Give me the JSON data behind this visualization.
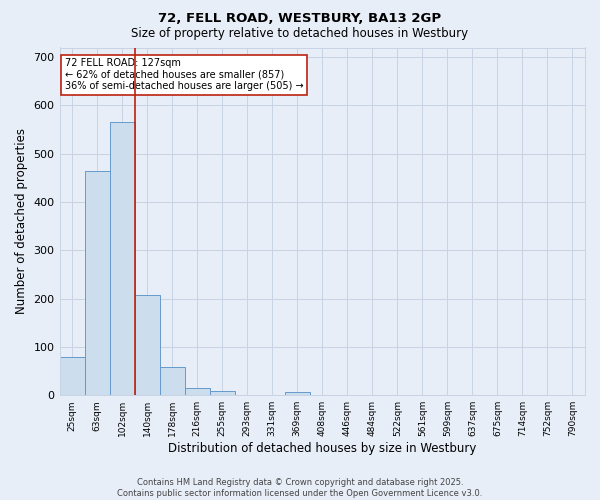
{
  "title1": "72, FELL ROAD, WESTBURY, BA13 2GP",
  "title2": "Size of property relative to detached houses in Westbury",
  "xlabel": "Distribution of detached houses by size in Westbury",
  "ylabel": "Number of detached properties",
  "categories": [
    "25sqm",
    "63sqm",
    "102sqm",
    "140sqm",
    "178sqm",
    "216sqm",
    "255sqm",
    "293sqm",
    "331sqm",
    "369sqm",
    "408sqm",
    "446sqm",
    "484sqm",
    "522sqm",
    "561sqm",
    "599sqm",
    "637sqm",
    "675sqm",
    "714sqm",
    "752sqm",
    "790sqm"
  ],
  "values": [
    80,
    465,
    565,
    208,
    58,
    15,
    8,
    0,
    0,
    7,
    0,
    0,
    0,
    0,
    0,
    0,
    0,
    0,
    0,
    0,
    0
  ],
  "bar_color": "#ccdded",
  "bar_edge_color": "#6699cc",
  "grid_color": "#c8d4e4",
  "background_color": "#e8eef8",
  "vline_x": 2.5,
  "vline_color": "#bb2211",
  "annotation_text": "72 FELL ROAD: 127sqm\n← 62% of detached houses are smaller (857)\n36% of semi-detached houses are larger (505) →",
  "annotation_box_color": "white",
  "annotation_box_edge": "#bb2211",
  "footer1": "Contains HM Land Registry data © Crown copyright and database right 2025.",
  "footer2": "Contains public sector information licensed under the Open Government Licence v3.0.",
  "ylim": [
    0,
    720
  ],
  "yticks": [
    0,
    100,
    200,
    300,
    400,
    500,
    600,
    700
  ]
}
